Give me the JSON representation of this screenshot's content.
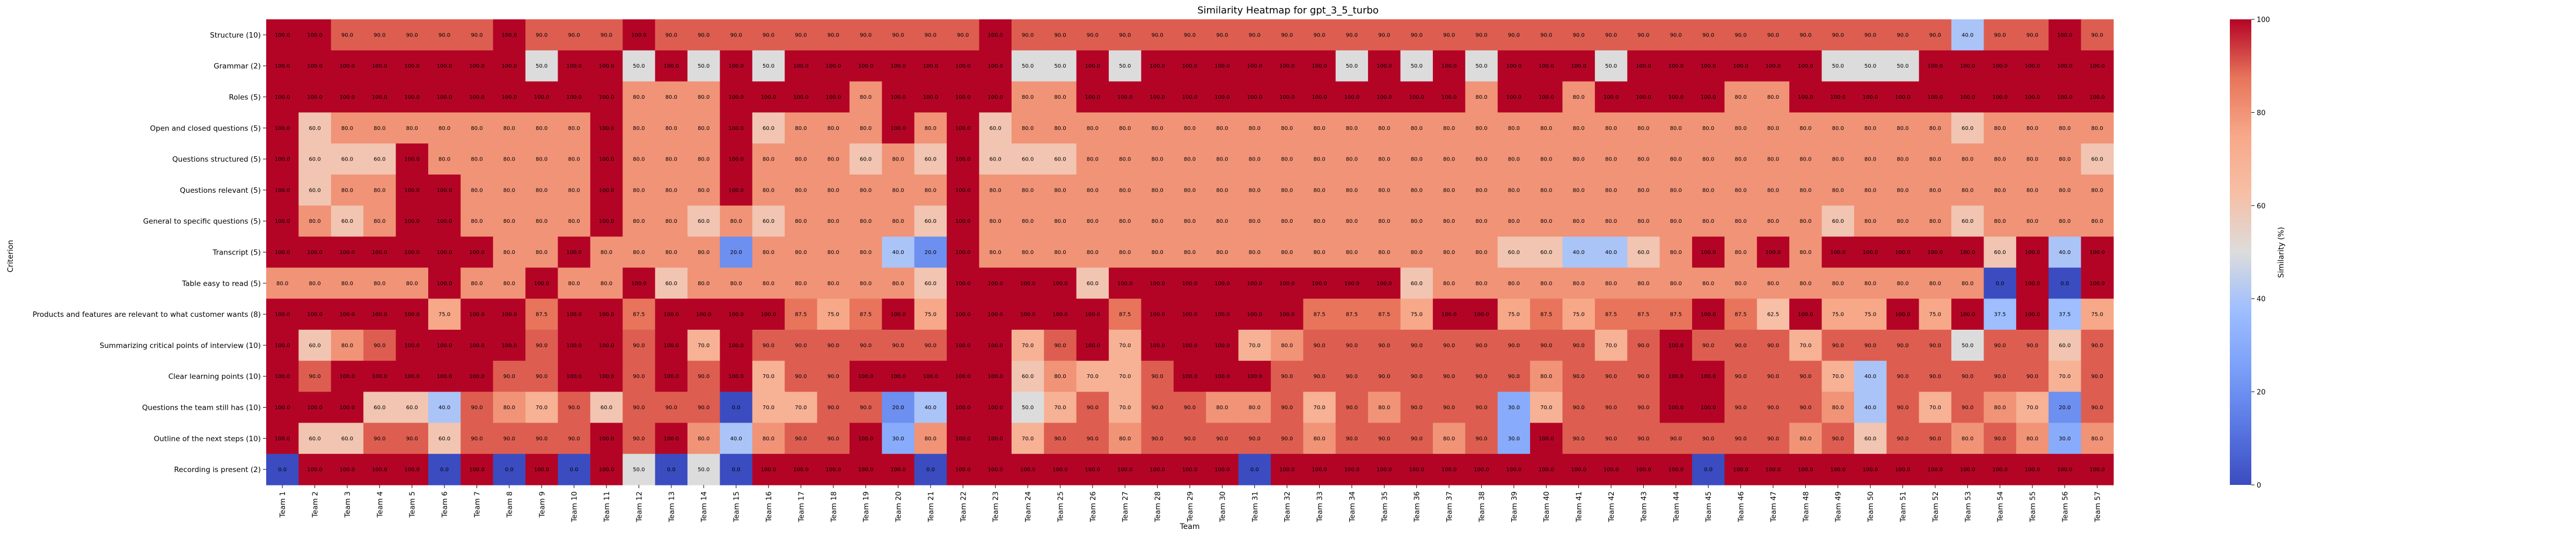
{
  "chart_data": {
    "type": "heatmap",
    "title": "Similarity Heatmap for gpt_3_5_turbo",
    "xlabel": "Team",
    "ylabel": "Criterion",
    "colorbar_label": "Similarity (%)",
    "colorbar_ticks": [
      0,
      20,
      40,
      60,
      80,
      100
    ],
    "vmin": 0,
    "vmax": 100,
    "colormap": "coolwarm",
    "x": [
      "Team 1",
      "Team 2",
      "Team 3",
      "Team 4",
      "Team 5",
      "Team 6",
      "Team 7",
      "Team 8",
      "Team 9",
      "Team 10",
      "Team 11",
      "Team 12",
      "Team 13",
      "Team 14",
      "Team 15",
      "Team 16",
      "Team 17",
      "Team 18",
      "Team 19",
      "Team 20",
      "Team 21",
      "Team 22",
      "Team 23",
      "Team 24",
      "Team 25",
      "Team 26",
      "Team 27",
      "Team 28",
      "Team 29",
      "Team 30",
      "Team 31",
      "Team 32",
      "Team 33",
      "Team 34",
      "Team 35",
      "Team 36",
      "Team 37",
      "Team 38",
      "Team 39",
      "Team 40",
      "Team 41",
      "Team 42",
      "Team 43",
      "Team 44",
      "Team 45",
      "Team 46",
      "Team 47",
      "Team 48",
      "Team 49",
      "Team 50",
      "Team 51",
      "Team 52",
      "Team 53",
      "Team 54",
      "Team 55",
      "Team 56",
      "Team 57"
    ],
    "y": [
      "Structure (10)",
      "Grammar (2)",
      "Roles (5)",
      "Open and closed questions (5)",
      "Questions structured (5)",
      "Questions relevant (5)",
      "General to specific questions (5)",
      "Transcript (5)",
      "Table easy to read (5)",
      "Products and features are relevant to what customer wants (8)",
      "Summarizing critical points of interview (10)",
      "Clear learning points (10)",
      "Questions the team still has (10)",
      "Outline of the next steps (10)",
      "Recording is present (2)"
    ],
    "values": [
      [
        100,
        100,
        90,
        90,
        90,
        90,
        90,
        100,
        90,
        90,
        90,
        100,
        90,
        90,
        90,
        90,
        90,
        90,
        90,
        90,
        90,
        90,
        100,
        90,
        90,
        90,
        90,
        90,
        90,
        90,
        90,
        90,
        90,
        90,
        90,
        90,
        90,
        90,
        90,
        90,
        90,
        90,
        90,
        90,
        90,
        90,
        90,
        90,
        90,
        90,
        90,
        90,
        40,
        90,
        90,
        100,
        90
      ],
      [
        100,
        100,
        100,
        100,
        100,
        100,
        100,
        100,
        50,
        100,
        100,
        50,
        100,
        50,
        100,
        50,
        100,
        100,
        100,
        100,
        100,
        100,
        100,
        50,
        50,
        100,
        50,
        100,
        100,
        100,
        100,
        100,
        100,
        50,
        100,
        50,
        100,
        50,
        100,
        100,
        100,
        50,
        100,
        100,
        100,
        100,
        100,
        100,
        50,
        50,
        50,
        100,
        100,
        100,
        100,
        100,
        100
      ],
      [
        100,
        100,
        100,
        100,
        100,
        100,
        100,
        100,
        100,
        100,
        100,
        80,
        80,
        80,
        100,
        100,
        100,
        100,
        80,
        100,
        100,
        100,
        100,
        80,
        80,
        100,
        100,
        100,
        100,
        100,
        100,
        100,
        100,
        100,
        100,
        100,
        100,
        80,
        100,
        100,
        80,
        100,
        100,
        100,
        100,
        80,
        80,
        100,
        100,
        100,
        100,
        100,
        100,
        100,
        100,
        100,
        100
      ],
      [
        100,
        60,
        80,
        80,
        80,
        80,
        80,
        80,
        80,
        80,
        100,
        80,
        80,
        80,
        100,
        60,
        80,
        80,
        80,
        100,
        80,
        100,
        60,
        80,
        80,
        80,
        80,
        80,
        80,
        80,
        80,
        80,
        80,
        80,
        80,
        80,
        80,
        80,
        80,
        80,
        80,
        80,
        80,
        80,
        80,
        80,
        80,
        80,
        80,
        80,
        80,
        80,
        60,
        80,
        80,
        80,
        80
      ],
      [
        100,
        60,
        60,
        60,
        100,
        80,
        80,
        80,
        80,
        80,
        100,
        80,
        80,
        80,
        100,
        80,
        80,
        80,
        60,
        80,
        60,
        100,
        60,
        60,
        60,
        80,
        80,
        80,
        80,
        80,
        80,
        80,
        80,
        80,
        80,
        80,
        80,
        80,
        80,
        80,
        80,
        80,
        80,
        80,
        80,
        80,
        80,
        80,
        80,
        80,
        80,
        80,
        80,
        80,
        80,
        80,
        60
      ],
      [
        100,
        60,
        80,
        80,
        100,
        100,
        80,
        80,
        80,
        80,
        100,
        80,
        80,
        80,
        100,
        80,
        80,
        80,
        80,
        80,
        80,
        100,
        80,
        80,
        80,
        80,
        80,
        80,
        80,
        80,
        80,
        80,
        80,
        80,
        80,
        80,
        80,
        80,
        80,
        80,
        80,
        80,
        80,
        80,
        80,
        80,
        80,
        80,
        80,
        80,
        80,
        80,
        80,
        80,
        80,
        80,
        80
      ],
      [
        100,
        80,
        60,
        80,
        100,
        100,
        80,
        80,
        80,
        80,
        100,
        80,
        80,
        60,
        80,
        60,
        80,
        80,
        80,
        80,
        60,
        100,
        80,
        80,
        80,
        80,
        80,
        80,
        80,
        80,
        80,
        80,
        80,
        80,
        80,
        80,
        80,
        80,
        80,
        80,
        80,
        80,
        80,
        80,
        80,
        80,
        80,
        80,
        60,
        80,
        80,
        80,
        60,
        80,
        80,
        80,
        80
      ],
      [
        100,
        100,
        100,
        100,
        100,
        100,
        100,
        80,
        80,
        100,
        80,
        80,
        80,
        80,
        20,
        80,
        80,
        80,
        80,
        40,
        20,
        100,
        80,
        80,
        80,
        80,
        80,
        80,
        80,
        80,
        80,
        80,
        80,
        80,
        80,
        80,
        80,
        80,
        60,
        60,
        40,
        40,
        60,
        80,
        100,
        80,
        100,
        80,
        100,
        100,
        100,
        100,
        100,
        60,
        100,
        40,
        100
      ],
      [
        80,
        80,
        80,
        80,
        80,
        100,
        80,
        80,
        100,
        80,
        80,
        100,
        60,
        80,
        80,
        80,
        80,
        80,
        80,
        80,
        60,
        100,
        100,
        100,
        100,
        60,
        100,
        100,
        100,
        100,
        100,
        100,
        100,
        100,
        100,
        60,
        80,
        80,
        80,
        80,
        80,
        80,
        80,
        80,
        80,
        80,
        80,
        80,
        80,
        80,
        80,
        80,
        80,
        0,
        100,
        0,
        100
      ],
      [
        100,
        100,
        100,
        100,
        100,
        75,
        100,
        100,
        87.5,
        100,
        100,
        87.5,
        100,
        100,
        100,
        100,
        87.5,
        75,
        87.5,
        100,
        75,
        100,
        100,
        100,
        100,
        100,
        87.5,
        100,
        100,
        100,
        100,
        100,
        87.5,
        87.5,
        87.5,
        75,
        100,
        100,
        75,
        87.5,
        75,
        87.5,
        87.5,
        87.5,
        100,
        87.5,
        62.5,
        100,
        75,
        75,
        100,
        75,
        100,
        37.5,
        100,
        37.5,
        75
      ],
      [
        100,
        60,
        80,
        90,
        100,
        100,
        100,
        100,
        90,
        100,
        100,
        90,
        100,
        70,
        100,
        90,
        90,
        90,
        90,
        90,
        90,
        100,
        100,
        70,
        90,
        100,
        70,
        100,
        100,
        100,
        70,
        80,
        90,
        90,
        90,
        90,
        90,
        90,
        90,
        90,
        90,
        70,
        90,
        100,
        90,
        90,
        90,
        70,
        90,
        90,
        90,
        90,
        50,
        90,
        90,
        60,
        90
      ],
      [
        100,
        90,
        100,
        100,
        100,
        100,
        100,
        90,
        90,
        100,
        100,
        90,
        100,
        90,
        100,
        70,
        90,
        90,
        100,
        100,
        100,
        100,
        100,
        60,
        80,
        70,
        70,
        90,
        100,
        100,
        100,
        90,
        90,
        90,
        90,
        90,
        90,
        90,
        90,
        80,
        90,
        90,
        90,
        100,
        100,
        90,
        90,
        90,
        70,
        40,
        90,
        90,
        90,
        90,
        90,
        70,
        90
      ],
      [
        100,
        100,
        100,
        60,
        60,
        40,
        90,
        80,
        70,
        90,
        60,
        90,
        90,
        90,
        0,
        70,
        70,
        90,
        90,
        20,
        40,
        100,
        100,
        50,
        70,
        90,
        70,
        90,
        90,
        80,
        80,
        90,
        70,
        90,
        80,
        90,
        90,
        90,
        30,
        70,
        90,
        90,
        90,
        100,
        100,
        90,
        90,
        90,
        80,
        40,
        90,
        70,
        90,
        80,
        70,
        20,
        90
      ],
      [
        100,
        60,
        60,
        90,
        90,
        60,
        90,
        90,
        90,
        90,
        100,
        90,
        100,
        80,
        40,
        80,
        90,
        90,
        100,
        30,
        80,
        100,
        100,
        70,
        90,
        90,
        80,
        90,
        90,
        90,
        90,
        90,
        80,
        90,
        90,
        90,
        80,
        90,
        30,
        100,
        90,
        90,
        90,
        90,
        90,
        90,
        90,
        80,
        90,
        60,
        90,
        90,
        80,
        90,
        80,
        30,
        80
      ],
      [
        0,
        100,
        100,
        100,
        100,
        0,
        100,
        0,
        100,
        0,
        100,
        50,
        0,
        50,
        0,
        100,
        100,
        100,
        100,
        100,
        0,
        100,
        100,
        100,
        100,
        100,
        100,
        100,
        100,
        100,
        0,
        100,
        100,
        100,
        100,
        100,
        100,
        100,
        100,
        100,
        100,
        100,
        100,
        100,
        0,
        100,
        100,
        100,
        100,
        100,
        100,
        100,
        100,
        100,
        100,
        100,
        100
      ]
    ]
  }
}
